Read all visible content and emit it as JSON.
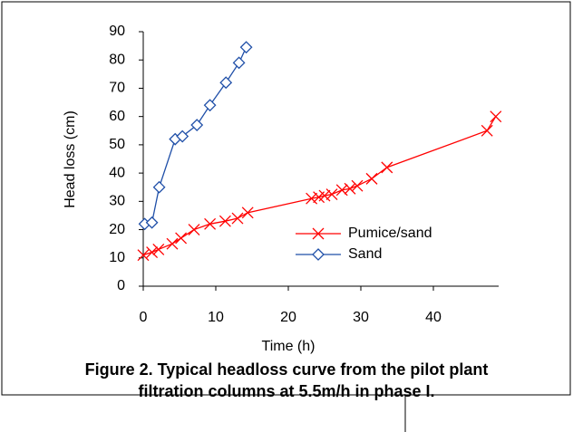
{
  "chart_data": {
    "type": "line",
    "caption": [
      "Figure 2. Typical headloss curve from the pilot plant",
      "filtration columns at 5.5m/h in phase I."
    ],
    "xlabel": "Time (h)",
    "ylabel": "Head loss (cm)",
    "xlim": [
      0,
      49
    ],
    "xticks": [
      0,
      10,
      20,
      30,
      40
    ],
    "ylim": [
      0,
      90
    ],
    "yticks": [
      0,
      10,
      20,
      30,
      40,
      50,
      60,
      70,
      80,
      90
    ],
    "grid": false,
    "legend": "lower right",
    "series": [
      {
        "name": "Pumice/sand",
        "color": "#ff0000",
        "marker": "x",
        "x": [
          0,
          1.2,
          2.1,
          4,
          5.2,
          7,
          9.2,
          11.3,
          13,
          14.4,
          23.2,
          24.2,
          25,
          26,
          27.4,
          28.5,
          29.5,
          31.5,
          33.6,
          47.4,
          48.6
        ],
        "values": [
          11,
          12,
          13,
          15,
          17,
          20,
          22,
          23,
          24,
          26,
          31,
          31.5,
          32,
          32.5,
          34,
          34.5,
          35.5,
          38,
          42,
          55,
          60
        ]
      },
      {
        "name": "Sand",
        "color": "#1f4fa8",
        "marker": "diamond",
        "x": [
          0.2,
          1.2,
          2.2,
          4.4,
          5.4,
          7.4,
          9.2,
          11.4,
          13.2,
          14.2
        ],
        "values": [
          22,
          22.5,
          35,
          52,
          53,
          57,
          64,
          72,
          79,
          84.5
        ]
      }
    ]
  }
}
